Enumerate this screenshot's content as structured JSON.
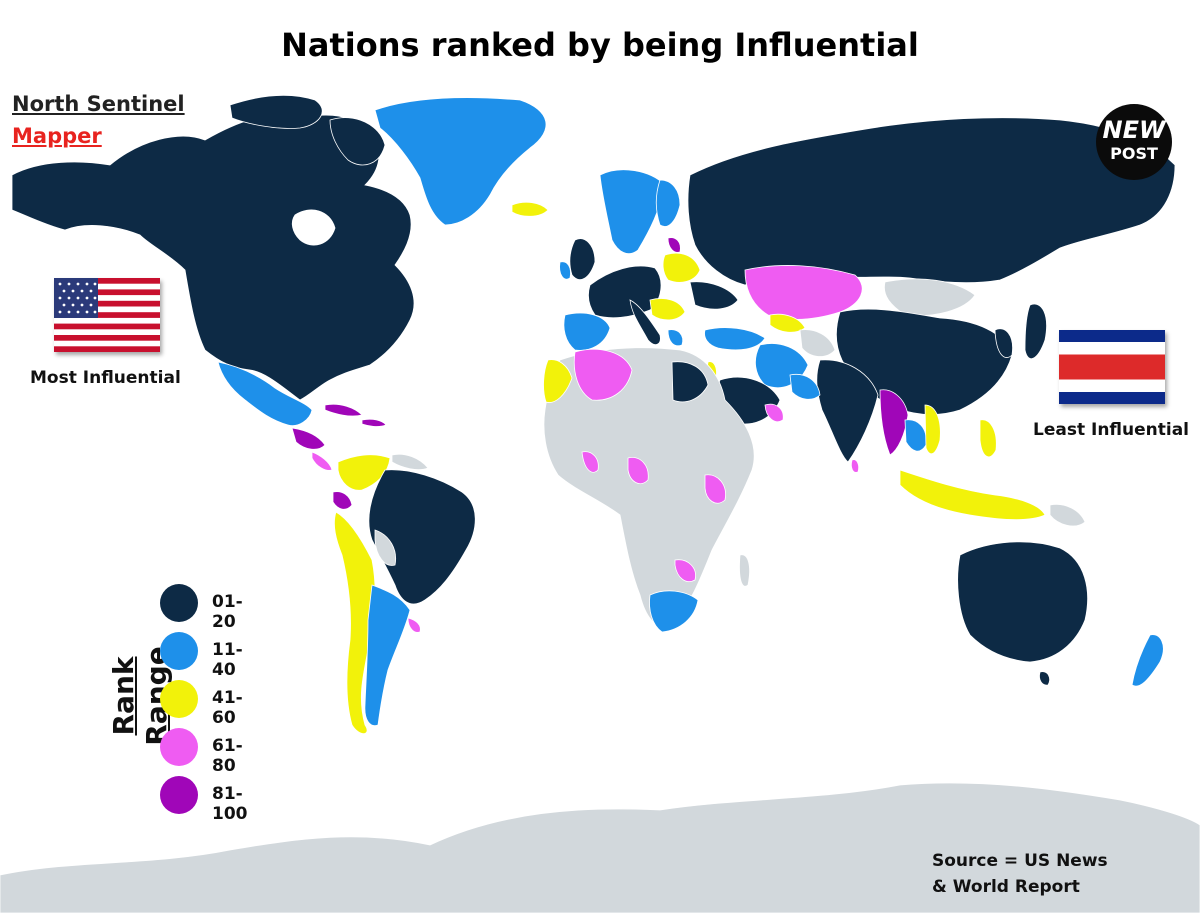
{
  "title": "Nations ranked by being Influential",
  "author": {
    "line1": "North Sentinel",
    "line2": "Mapper"
  },
  "badge": {
    "line1": "NEW",
    "line2": "POST"
  },
  "most_label": "Most Influential",
  "least_label": "Least Influential",
  "legend": {
    "title": "Rank Range",
    "items": [
      {
        "label": "01-20",
        "color": "#0d2a45"
      },
      {
        "label": "11-40",
        "color": "#1e90ea"
      },
      {
        "label": "41-60",
        "color": "#f2f20a"
      },
      {
        "label": "61-80",
        "color": "#ef5cf2"
      },
      {
        "label": "81-100",
        "color": "#a006b8"
      }
    ]
  },
  "source": {
    "line1": "Source = US News",
    "line2": "& World Report"
  },
  "colors": {
    "no_data": "#d2d8dc",
    "ocean": "#ffffff",
    "flag_blue": "#0c2a8a",
    "flag_red": "#dd2a2a"
  },
  "chart_data": {
    "type": "choropleth",
    "title": "Nations ranked by being Influential",
    "legend_title": "Rank Range",
    "categories": [
      "01-20",
      "11-40",
      "41-60",
      "61-80",
      "81-100"
    ],
    "most_influential": "United States",
    "least_influential": "Costa Rica"
  }
}
